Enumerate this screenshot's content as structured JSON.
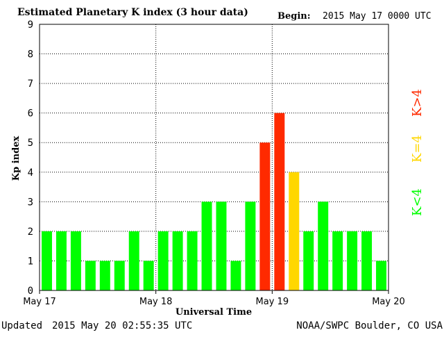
{
  "colors": {
    "low": "#00ff00",
    "storm_threshold": "#ffd700",
    "high": "#ff2a00",
    "grid": "#000000"
  },
  "header": {
    "title": "Estimated Planetary K index (3 hour data)",
    "begin_label": "Begin:",
    "begin_value": "2015 May 17 0000 UTC"
  },
  "footer": {
    "updated_label": "Updated",
    "updated_value": "2015 May 20 02:55:35 UTC",
    "source": "NOAA/SWPC Boulder, CO USA"
  },
  "legend": {
    "low": "K<4",
    "equal": "K=4",
    "high": "K>4"
  },
  "chart_data": {
    "type": "bar",
    "title": "Estimated Planetary K index (3 hour data)",
    "xlabel": "Universal Time",
    "ylabel": "Kp index",
    "ylim": [
      0,
      9
    ],
    "yticks": [
      0,
      1,
      2,
      3,
      4,
      5,
      6,
      7,
      8,
      9
    ],
    "x_tick_labels": [
      "May 17",
      "May 18",
      "May 19",
      "May 20"
    ],
    "interval_hours": 3,
    "categories": [
      "May 17 00",
      "May 17 03",
      "May 17 06",
      "May 17 09",
      "May 17 12",
      "May 17 15",
      "May 17 18",
      "May 17 21",
      "May 18 00",
      "May 18 03",
      "May 18 06",
      "May 18 09",
      "May 18 12",
      "May 18 15",
      "May 18 18",
      "May 18 21",
      "May 19 00",
      "May 19 03",
      "May 19 06",
      "May 19 09",
      "May 19 12",
      "May 19 15",
      "May 19 18",
      "May 19 21"
    ],
    "values": [
      2,
      2,
      2,
      1,
      1,
      1,
      2,
      1,
      2,
      2,
      2,
      3,
      3,
      1,
      3,
      5,
      6,
      4,
      2,
      3,
      2,
      2,
      2,
      1
    ],
    "grid": true,
    "legend_position": "right"
  }
}
